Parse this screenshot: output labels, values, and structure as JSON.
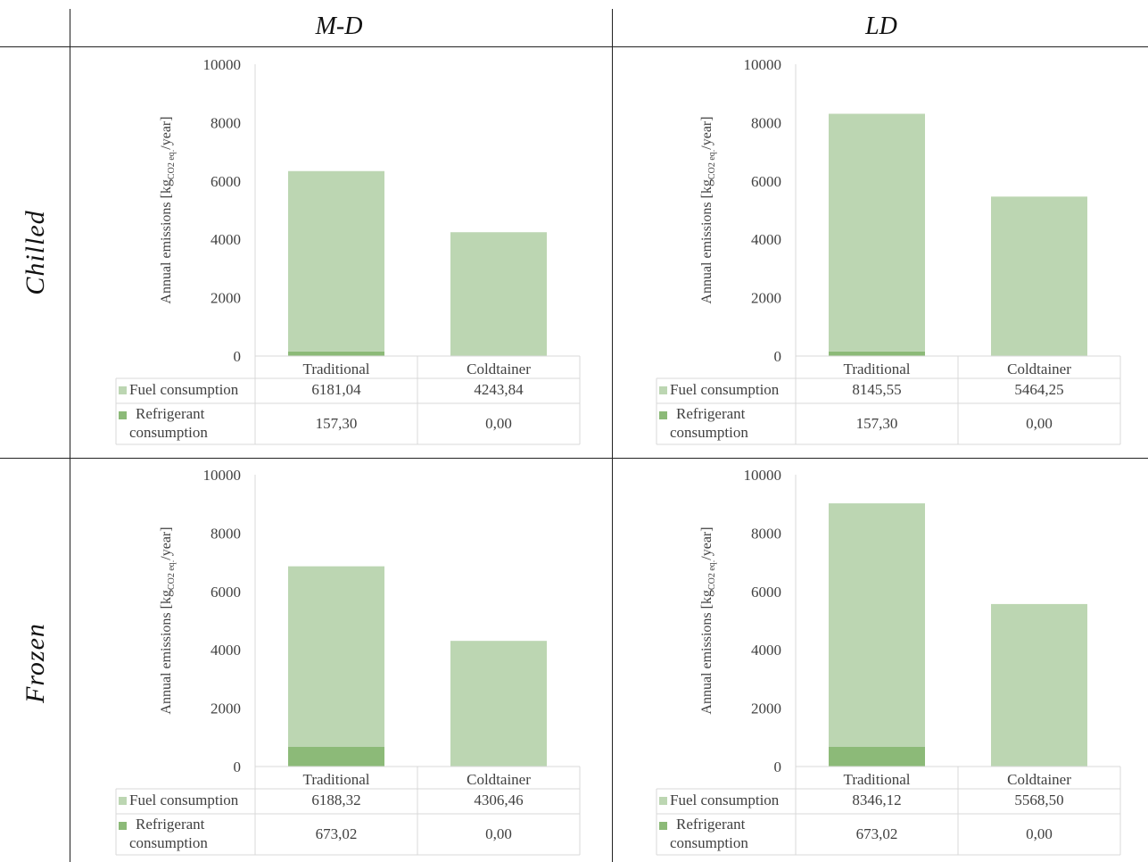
{
  "columns": [
    "M-D",
    "LD"
  ],
  "rows": [
    "Chilled",
    "Frozen"
  ],
  "colors": {
    "fuel": "#bcd6b2",
    "refrigerant": "#8cba78",
    "grid": "#d9d9d9"
  },
  "chart_data": [
    {
      "type": "bar",
      "stacked": true,
      "panel": "Chilled / M-D",
      "categories": [
        "Traditional",
        "Coldtainer"
      ],
      "series": [
        {
          "name": "Fuel consumption",
          "values": [
            6181.04,
            4243.84
          ],
          "labels": [
            "6181,04",
            "4243,84"
          ]
        },
        {
          "name_lines": [
            "Refrigerant",
            "consumption"
          ],
          "values": [
            157.3,
            0.0
          ],
          "labels": [
            "157,30",
            "0,00"
          ]
        }
      ],
      "ylabel": "Annual emissions [kg",
      "ylabel_sub": "CO2 eq.",
      "ylabel_end": "/year]",
      "ylim": [
        0,
        10000
      ],
      "yticks": [
        0,
        2000,
        4000,
        6000,
        8000,
        10000
      ],
      "legend": "data table"
    },
    {
      "type": "bar",
      "stacked": true,
      "panel": "Chilled / LD",
      "categories": [
        "Traditional",
        "Coldtainer"
      ],
      "series": [
        {
          "name": "Fuel consumption",
          "values": [
            8145.55,
            5464.25
          ],
          "labels": [
            "8145,55",
            "5464,25"
          ]
        },
        {
          "name_lines": [
            "Refrigerant",
            "consumption"
          ],
          "values": [
            157.3,
            0.0
          ],
          "labels": [
            "157,30",
            "0,00"
          ]
        }
      ],
      "ylabel": "Annual emissions [kg",
      "ylabel_sub": "CO2 eq.",
      "ylabel_end": "/year]",
      "ylim": [
        0,
        10000
      ],
      "yticks": [
        0,
        2000,
        4000,
        6000,
        8000,
        10000
      ],
      "legend": "data table"
    },
    {
      "type": "bar",
      "stacked": true,
      "panel": "Frozen / M-D",
      "categories": [
        "Traditional",
        "Coldtainer"
      ],
      "series": [
        {
          "name": "Fuel consumption",
          "values": [
            6188.32,
            4306.46
          ],
          "labels": [
            "6188,32",
            "4306,46"
          ]
        },
        {
          "name_lines": [
            "Refrigerant",
            "consumption"
          ],
          "values": [
            673.02,
            0.0
          ],
          "labels": [
            "673,02",
            "0,00"
          ]
        }
      ],
      "ylabel": "Annual emissions [kg",
      "ylabel_sub": "CO2 eq.",
      "ylabel_end": "/year]",
      "ylim": [
        0,
        10000
      ],
      "yticks": [
        0,
        2000,
        4000,
        6000,
        8000,
        10000
      ],
      "legend": "data table"
    },
    {
      "type": "bar",
      "stacked": true,
      "panel": "Frozen / LD",
      "categories": [
        "Traditional",
        "Coldtainer"
      ],
      "series": [
        {
          "name": "Fuel consumption",
          "values": [
            8346.12,
            5568.5
          ],
          "labels": [
            "8346,12",
            "5568,50"
          ]
        },
        {
          "name_lines": [
            "Refrigerant",
            "consumption"
          ],
          "values": [
            673.02,
            0.0
          ],
          "labels": [
            "673,02",
            "0,00"
          ]
        }
      ],
      "ylabel": "Annual emissions [kg",
      "ylabel_sub": "CO2 eq.",
      "ylabel_end": "/year]",
      "ylim": [
        0,
        10000
      ],
      "yticks": [
        0,
        2000,
        4000,
        6000,
        8000,
        10000
      ],
      "legend": "data table"
    }
  ]
}
